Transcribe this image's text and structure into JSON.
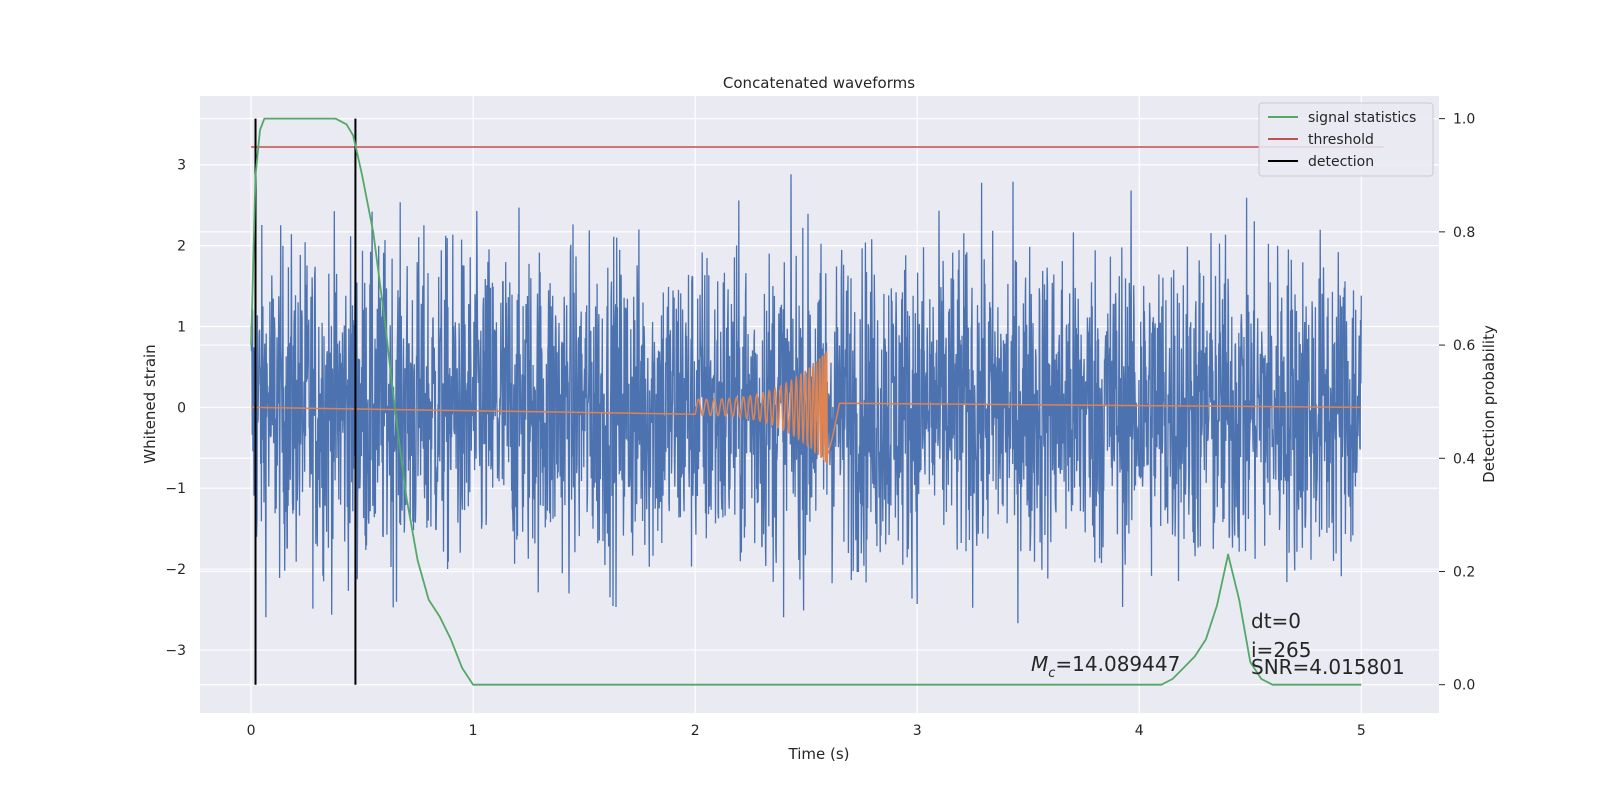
{
  "chart_data": {
    "type": "line",
    "title": "Concatenated waveforms",
    "xlabel": "Time (s)",
    "ylabel": "Whitened strain",
    "ylabel_right": "Detection probability",
    "xlim": [
      -0.23,
      5.35
    ],
    "ylim": [
      -3.78,
      3.85
    ],
    "ylim_right": [
      -0.05,
      1.04
    ],
    "x_ticks": [
      0,
      1,
      2,
      3,
      4,
      5
    ],
    "x_tick_labels": [
      "0",
      "1",
      "2",
      "3",
      "4",
      "5"
    ],
    "y_ticks": [
      -3,
      -2,
      -1,
      0,
      1,
      2,
      3
    ],
    "y_tick_labels": [
      "−3",
      "−2",
      "−1",
      "0",
      "1",
      "2",
      "3"
    ],
    "y_right_ticks": [
      0.0,
      0.2,
      0.4,
      0.6,
      0.8,
      1.0
    ],
    "y_right_tick_labels": [
      "0.0",
      "0.2",
      "0.4",
      "0.6",
      "0.8",
      "1.0"
    ],
    "grid": true,
    "legend_position": "top-right",
    "legend": [
      {
        "label": "signal statistics",
        "color": "#55a868"
      },
      {
        "label": "threshold",
        "color": "#c44e52"
      },
      {
        "label": "detection",
        "color": "#000000"
      }
    ],
    "series": [
      {
        "key": "strain",
        "axis": "left",
        "color": "#4c72b0",
        "x_range": [
          0,
          5
        ],
        "envelope": 3.5,
        "note_on_data": "dense noise trace"
      },
      {
        "key": "template",
        "axis": "left",
        "color": "#dd8452",
        "chirp_start": 2.0,
        "chirp_end": 2.6,
        "peak_amplitude": 0.72
      },
      {
        "key": "signal_statistics",
        "axis": "right",
        "color": "#55a868",
        "x": [
          0.0,
          0.02,
          0.04,
          0.06,
          0.1,
          0.2,
          0.3,
          0.38,
          0.43,
          0.46,
          0.5,
          0.55,
          0.6,
          0.65,
          0.7,
          0.75,
          0.8,
          0.85,
          0.9,
          0.95,
          1.0,
          1.2,
          1.5,
          2.0,
          2.5,
          3.0,
          3.5,
          3.8,
          4.1,
          4.15,
          4.2,
          4.25,
          4.3,
          4.35,
          4.4,
          4.45,
          4.5,
          4.55,
          4.6,
          5.0
        ],
        "y": [
          0.6,
          0.9,
          0.98,
          1.0,
          1.0,
          1.0,
          1.0,
          1.0,
          0.99,
          0.97,
          0.9,
          0.8,
          0.65,
          0.48,
          0.33,
          0.22,
          0.15,
          0.12,
          0.08,
          0.03,
          0.0,
          0.0,
          0.0,
          0.0,
          0.0,
          0.0,
          0.0,
          0.0,
          0.0,
          0.01,
          0.03,
          0.05,
          0.08,
          0.14,
          0.23,
          0.15,
          0.04,
          0.01,
          0.0,
          0.0
        ]
      },
      {
        "key": "threshold",
        "axis": "right",
        "color": "#c44e52",
        "x": [
          0.0,
          5.1
        ],
        "y": [
          0.95,
          0.95
        ]
      },
      {
        "key": "detection",
        "axis": "right",
        "color": "#000000",
        "x_values": [
          0.02,
          0.47
        ],
        "y_range": [
          0.0,
          1.0
        ]
      }
    ],
    "annotations": {
      "mc_prefix": "M",
      "mc_subscript": "c",
      "mc_value": "=14.089447",
      "dt": "dt=0",
      "i": "i=265",
      "snr": "SNR=4.015801"
    }
  }
}
